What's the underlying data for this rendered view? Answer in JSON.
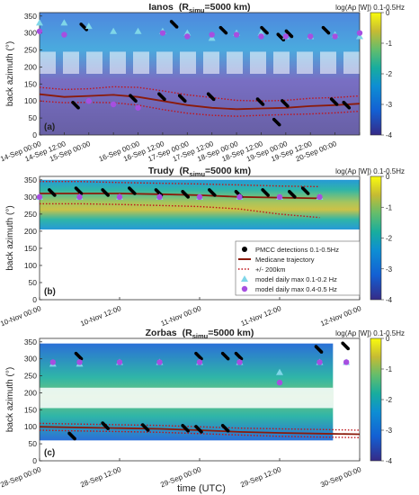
{
  "figure": {
    "x_axis_label": "time (UTC)",
    "y_axis_label": "back azimuth (°)",
    "colorbar_label": "log(Ap [W]) 0.1-0.5Hz",
    "colorbar_ticks": [
      "0",
      "-1",
      "-2",
      "-3",
      "-4"
    ],
    "colors": {
      "pmcc": "#000000",
      "trajectory": "#8b1a0a",
      "bound": "#c0151b",
      "model_low": "#7fd6e8",
      "model_high": "#a64fe0"
    }
  },
  "legend": {
    "items": [
      {
        "label": "PMCC detections 0.1-0.5Hz",
        "marker": "dot-black"
      },
      {
        "label": "Medicane trajectory",
        "marker": "line-solid-brown"
      },
      {
        "label": "+/- 200km",
        "marker": "line-dotted-red"
      },
      {
        "label": "model daily max 0.1-0.2 Hz",
        "marker": "triangle-cyan"
      },
      {
        "label": "model daily max 0.4-0.5 Hz",
        "marker": "circle-purple"
      }
    ]
  },
  "chart_data": [
    {
      "type": "heatmap",
      "panel": "(a)",
      "title_name": "Ianos",
      "title_param": "(R",
      "title_sub": "simu",
      "title_value": "=5000 km)",
      "ylim": [
        0,
        360
      ],
      "yticks": [
        "0",
        "50",
        "100",
        "150",
        "200",
        "250",
        "300",
        "350"
      ],
      "x_tick_labels": [
        "14-Sep 00:00",
        "14-Sep 12:00",
        "15-Sep 00:00",
        "16-Sep 00:00",
        "16-Sep 12:00",
        "17-Sep 00:00",
        "17-Sep 12:00",
        "18-Sep 00:00",
        "18-Sep 12:00",
        "19-Sep 00:00",
        "19-Sep 12:00",
        "20-Sep 00:00"
      ],
      "x_range_hours": [
        0,
        156
      ],
      "x_tick_hours": [
        0,
        12,
        24,
        36,
        48,
        60,
        72,
        84,
        96,
        108,
        120,
        132,
        144,
        156
      ],
      "x_tick_label_hours": [
        0,
        12,
        24,
        48,
        60,
        72,
        84,
        96,
        108,
        120,
        132,
        144
      ],
      "model_low_tri": [
        [
          0,
          330
        ],
        [
          12,
          330
        ],
        [
          24,
          320
        ],
        [
          36,
          305
        ],
        [
          48,
          305
        ],
        [
          60,
          305
        ],
        [
          72,
          300
        ],
        [
          84,
          285
        ],
        [
          96,
          300
        ],
        [
          108,
          300
        ],
        [
          120,
          290
        ],
        [
          132,
          290
        ],
        [
          144,
          295
        ],
        [
          156,
          290
        ]
      ],
      "model_high_circ": [
        [
          0,
          305
        ],
        [
          12,
          295
        ],
        [
          24,
          100
        ],
        [
          36,
          90
        ],
        [
          48,
          80
        ],
        [
          60,
          300
        ],
        [
          72,
          290
        ],
        [
          84,
          295
        ],
        [
          96,
          295
        ],
        [
          108,
          290
        ],
        [
          120,
          290
        ],
        [
          132,
          290
        ],
        [
          144,
          290
        ],
        [
          156,
          300
        ]
      ],
      "pmcc_clusters": [
        [
          22,
          310
        ],
        [
          66,
          318
        ],
        [
          90,
          300
        ],
        [
          110,
          300
        ],
        [
          118,
          280
        ],
        [
          122,
          290
        ],
        [
          140,
          300
        ],
        [
          60,
          105
        ],
        [
          70,
          100
        ],
        [
          108,
          90
        ],
        [
          120,
          85
        ],
        [
          144,
          90
        ],
        [
          150,
          80
        ],
        [
          18,
          80
        ],
        [
          46,
          100
        ],
        [
          84,
          105
        ],
        [
          116,
          30
        ]
      ],
      "trajectory": [
        [
          0,
          120
        ],
        [
          12,
          112
        ],
        [
          24,
          115
        ],
        [
          36,
          118
        ],
        [
          48,
          112
        ],
        [
          60,
          100
        ],
        [
          72,
          88
        ],
        [
          84,
          80
        ],
        [
          96,
          76
        ],
        [
          108,
          78
        ],
        [
          120,
          80
        ],
        [
          132,
          85
        ],
        [
          144,
          88
        ],
        [
          156,
          92
        ]
      ],
      "upper_bound": [
        [
          0,
          140
        ],
        [
          12,
          134
        ],
        [
          24,
          136
        ],
        [
          36,
          142
        ],
        [
          48,
          140
        ],
        [
          60,
          130
        ],
        [
          72,
          118
        ],
        [
          84,
          110
        ],
        [
          96,
          102
        ],
        [
          108,
          100
        ],
        [
          120,
          102
        ],
        [
          132,
          108
        ],
        [
          144,
          110
        ],
        [
          156,
          115
        ]
      ],
      "lower_bound": [
        [
          0,
          100
        ],
        [
          12,
          95
        ],
        [
          24,
          96
        ],
        [
          36,
          95
        ],
        [
          48,
          88
        ],
        [
          60,
          75
        ],
        [
          72,
          64
        ],
        [
          84,
          58
        ],
        [
          96,
          55
        ],
        [
          108,
          58
        ],
        [
          120,
          60
        ],
        [
          132,
          62
        ],
        [
          144,
          65
        ],
        [
          156,
          70
        ]
      ]
    },
    {
      "type": "heatmap",
      "panel": "(b)",
      "title_name": "Trudy",
      "title_param": "(R",
      "title_sub": "simu",
      "title_value": "=5000 km)",
      "ylim": [
        0,
        360
      ],
      "yticks": [
        "0",
        "50",
        "100",
        "150",
        "200",
        "250",
        "300",
        "350"
      ],
      "x_tick_labels": [
        "10-Nov 00:00",
        "10-Nov 12:00",
        "11-Nov 00:00",
        "11-Nov 12:00",
        "12-Nov 00:00"
      ],
      "x_range_hours": [
        0,
        48
      ],
      "x_tick_hours": [
        0,
        12,
        24,
        36,
        48
      ],
      "x_tick_label_hours": [
        0,
        12,
        24,
        36,
        48
      ],
      "model_low_tri": [
        [
          0,
          300
        ],
        [
          6,
          300
        ],
        [
          12,
          300
        ],
        [
          18,
          300
        ],
        [
          24,
          300
        ],
        [
          30,
          300
        ],
        [
          36,
          300
        ],
        [
          42,
          300
        ]
      ],
      "model_high_circ": [
        [
          0,
          300
        ],
        [
          6,
          300
        ],
        [
          12,
          300
        ],
        [
          18,
          300
        ],
        [
          24,
          300
        ],
        [
          30,
          300
        ],
        [
          36,
          300
        ],
        [
          42,
          300
        ]
      ],
      "pmcc_clusters": [
        [
          2,
          305
        ],
        [
          6,
          310
        ],
        [
          10,
          305
        ],
        [
          14,
          310
        ],
        [
          18,
          305
        ],
        [
          22,
          300
        ],
        [
          26,
          305
        ],
        [
          30,
          300
        ],
        [
          34,
          305
        ],
        [
          38,
          300
        ],
        [
          40,
          310
        ]
      ],
      "trajectory": [
        [
          0,
          310
        ],
        [
          6,
          310
        ],
        [
          12,
          310
        ],
        [
          18,
          308
        ],
        [
          24,
          305
        ],
        [
          30,
          300
        ],
        [
          36,
          298
        ],
        [
          42,
          296
        ]
      ],
      "upper_bound": [
        [
          0,
          345
        ],
        [
          6,
          345
        ],
        [
          12,
          342
        ],
        [
          18,
          340
        ],
        [
          24,
          338
        ],
        [
          30,
          335
        ],
        [
          36,
          332
        ],
        [
          42,
          330
        ]
      ],
      "lower_bound": [
        [
          0,
          280
        ],
        [
          6,
          280
        ],
        [
          12,
          278
        ],
        [
          18,
          275
        ],
        [
          24,
          272
        ],
        [
          30,
          265
        ],
        [
          36,
          250
        ],
        [
          42,
          240
        ]
      ]
    },
    {
      "type": "heatmap",
      "panel": "(c)",
      "title_name": "Zorbas",
      "title_param": "(R",
      "title_sub": "simu",
      "title_value": "=5000 km)",
      "ylim": [
        0,
        360
      ],
      "yticks": [
        "0",
        "50",
        "100",
        "150",
        "200",
        "250",
        "300",
        "350"
      ],
      "x_tick_labels": [
        "28-Sep 00:00",
        "28-Sep 12:00",
        "29-Sep 00:00",
        "29-Sep 12:00",
        "30-Sep 00:00"
      ],
      "x_range_hours": [
        0,
        48
      ],
      "x_tick_hours": [
        0,
        12,
        24,
        36,
        48
      ],
      "x_tick_label_hours": [
        0,
        12,
        24,
        36,
        48
      ],
      "model_low_tri": [
        [
          2,
          285
        ],
        [
          6,
          285
        ],
        [
          12,
          290
        ],
        [
          18,
          290
        ],
        [
          24,
          290
        ],
        [
          30,
          290
        ],
        [
          36,
          260
        ],
        [
          42,
          290
        ],
        [
          46,
          290
        ]
      ],
      "model_high_circ": [
        [
          2,
          290
        ],
        [
          6,
          290
        ],
        [
          12,
          290
        ],
        [
          18,
          290
        ],
        [
          24,
          290
        ],
        [
          30,
          290
        ],
        [
          36,
          230
        ],
        [
          42,
          290
        ],
        [
          46,
          290
        ]
      ],
      "pmcc_clusters": [
        [
          6,
          300
        ],
        [
          24,
          300
        ],
        [
          28,
          300
        ],
        [
          30,
          300
        ],
        [
          42,
          320
        ],
        [
          46,
          330
        ],
        [
          10,
          95
        ],
        [
          16,
          90
        ],
        [
          22,
          88
        ],
        [
          24,
          85
        ],
        [
          28,
          88
        ],
        [
          5,
          65
        ]
      ],
      "trajectory": [
        [
          0,
          100
        ],
        [
          6,
          98
        ],
        [
          12,
          96
        ],
        [
          18,
          94
        ],
        [
          24,
          90
        ],
        [
          30,
          85
        ],
        [
          36,
          82
        ],
        [
          42,
          80
        ],
        [
          48,
          78
        ]
      ],
      "upper_bound": [
        [
          0,
          110
        ],
        [
          6,
          108
        ],
        [
          12,
          106
        ],
        [
          18,
          104
        ],
        [
          24,
          100
        ],
        [
          30,
          96
        ],
        [
          36,
          94
        ],
        [
          42,
          92
        ],
        [
          48,
          90
        ]
      ],
      "lower_bound": [
        [
          0,
          90
        ],
        [
          6,
          88
        ],
        [
          12,
          86
        ],
        [
          18,
          84
        ],
        [
          24,
          80
        ],
        [
          30,
          76
        ],
        [
          36,
          72
        ],
        [
          42,
          70
        ],
        [
          48,
          68
        ]
      ]
    }
  ]
}
